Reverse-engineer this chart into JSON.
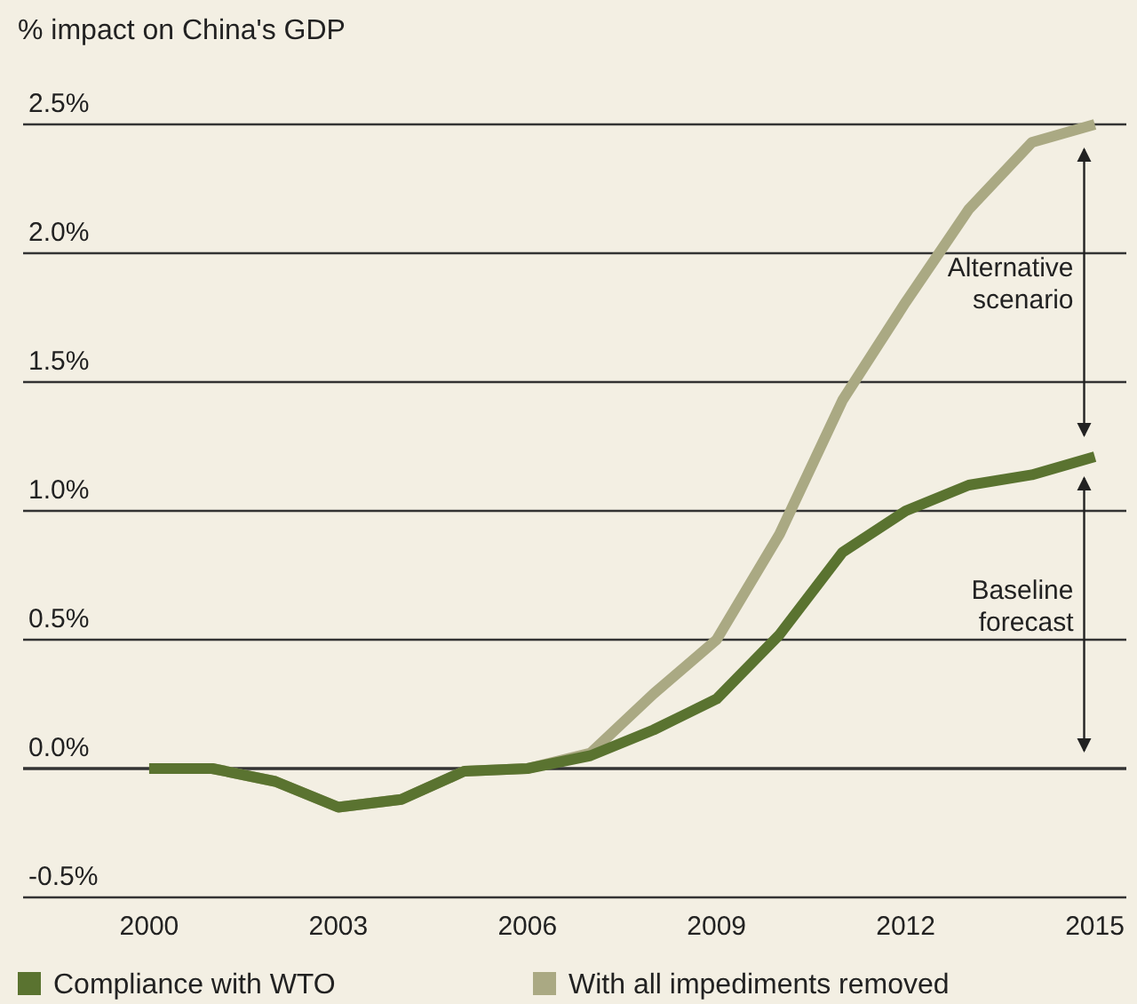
{
  "chart_data": {
    "type": "line",
    "ylabel": "% impact on China's GDP",
    "x": [
      2000,
      2001,
      2002,
      2003,
      2004,
      2005,
      2006,
      2007,
      2008,
      2009,
      2010,
      2011,
      2012,
      2013,
      2014,
      2015
    ],
    "series": [
      {
        "name": "Compliance with WTO",
        "color": "#5a7330",
        "values": [
          0,
          0,
          -0.05,
          -0.15,
          -0.12,
          -0.01,
          0,
          0.05,
          0.15,
          0.27,
          0.52,
          0.84,
          1.0,
          1.1,
          1.14,
          1.21
        ]
      },
      {
        "name": "With all impediments removed",
        "color": "#aaa983",
        "values": [
          0,
          0,
          -0.05,
          -0.15,
          -0.12,
          -0.01,
          0,
          0.06,
          0.29,
          0.5,
          0.91,
          1.43,
          1.81,
          2.17,
          2.43,
          2.5
        ]
      }
    ],
    "xlim": [
      1998,
      2015.5
    ],
    "xticks": [
      2000,
      2003,
      2006,
      2009,
      2012,
      2015
    ],
    "ylim": [
      -0.5,
      2.5
    ],
    "yticks": [
      {
        "value": -0.5,
        "label": "-0.5%"
      },
      {
        "value": 0,
        "label": "0.0%"
      },
      {
        "value": 0.5,
        "label": "0.5%"
      },
      {
        "value": 1,
        "label": "1.0%"
      },
      {
        "value": 1.5,
        "label": "1.5%"
      },
      {
        "value": 2,
        "label": "2.0%"
      },
      {
        "value": 2.5,
        "label": "2.5%"
      }
    ],
    "grid": "y",
    "legend": "bottom",
    "marker": "none",
    "line_style": "solid",
    "annotations": [
      "Alternative scenario",
      "Baseline forecast"
    ]
  }
}
